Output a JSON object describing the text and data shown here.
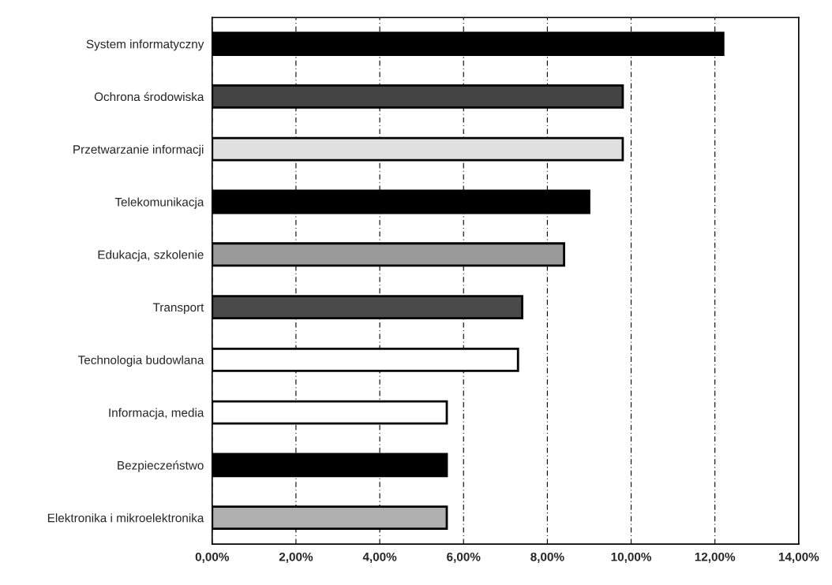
{
  "chart_data": {
    "type": "bar",
    "orientation": "horizontal",
    "categories": [
      "System informatyczny",
      "Ochrona środowiska",
      "Przetwarzanie informacji",
      "Telekomunikacja",
      "Edukacja, szkolenie",
      "Transport",
      "Technologia budowlana",
      "Informacja, media",
      "Bezpieczeństwo",
      "Elektronika i mikroelektronika"
    ],
    "values": [
      12.2,
      9.8,
      9.8,
      9.0,
      8.4,
      7.4,
      7.3,
      5.6,
      5.6,
      5.6
    ],
    "colors": [
      "#000000",
      "#444444",
      "#e0e0e0",
      "#000000",
      "#9a9a9a",
      "#4a4a4a",
      "#ffffff",
      "#ffffff",
      "#000000",
      "#b0b0b0"
    ],
    "xlim": [
      0,
      14
    ],
    "xticks": [
      {
        "value": 0,
        "label": "0,00%"
      },
      {
        "value": 2,
        "label": "2,00%"
      },
      {
        "value": 4,
        "label": "4,00%"
      },
      {
        "value": 6,
        "label": "6,00%"
      },
      {
        "value": 8,
        "label": "8,00%"
      },
      {
        "value": 10,
        "label": "10,00%"
      },
      {
        "value": 12,
        "label": "12,00%"
      },
      {
        "value": 14,
        "label": "14,00%"
      }
    ],
    "grid": "x"
  }
}
